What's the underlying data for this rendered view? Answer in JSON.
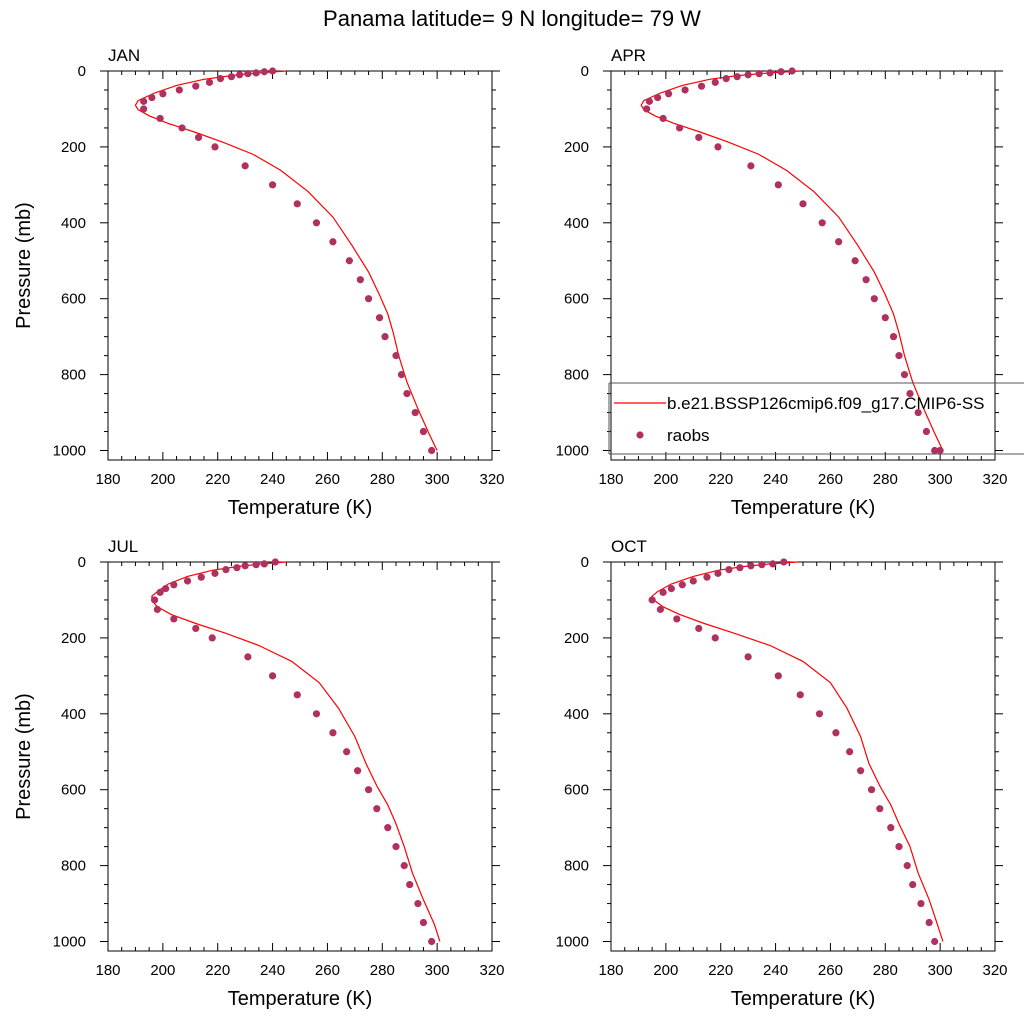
{
  "figure_title": "Panama  latitude= 9 N longitude= 79 W",
  "colors": {
    "model_line": "#ff0000",
    "raobs_marker": "#b03060",
    "axis": "#000000"
  },
  "legend": {
    "model_label": "b.e21.BSSP126cmip6.f09_g17.CMIP6-SS",
    "obs_label": "raobs"
  },
  "chart_data": [
    {
      "type": "line",
      "title": "JAN",
      "xlabel": "Temperature (K)",
      "ylabel": "Pressure (mb)",
      "xlim": [
        180,
        320
      ],
      "ylim": [
        0,
        1025
      ],
      "y_reversed": true,
      "xticks": [
        "180",
        "200",
        "220",
        "240",
        "260",
        "280",
        "300",
        "320"
      ],
      "yticks": [
        "0",
        "200",
        "400",
        "600",
        "800",
        "1000"
      ],
      "series": [
        {
          "name": "b.e21.BSSP126cmip6.f09_g17.CMIP6-SS",
          "kind": "line",
          "x": [
            245,
            235,
            225,
            215,
            205,
            197,
            191,
            190,
            191,
            195,
            202,
            212,
            222,
            233,
            243,
            253,
            262,
            269,
            275,
            279,
            282,
            284,
            286,
            289,
            293,
            297,
            300
          ],
          "y": [
            0,
            5,
            12,
            22,
            38,
            58,
            78,
            90,
            102,
            118,
            138,
            162,
            188,
            220,
            262,
            318,
            385,
            460,
            530,
            590,
            640,
            690,
            750,
            820,
            890,
            955,
            1000
          ]
        },
        {
          "name": "raobs",
          "kind": "scatter",
          "x": [
            240,
            237,
            234,
            231,
            228,
            225,
            221,
            217,
            212,
            206,
            200,
            196,
            193,
            193,
            199,
            207,
            213,
            219,
            230,
            240,
            249,
            256,
            262,
            268,
            272,
            275,
            279,
            281,
            285,
            287,
            289,
            292,
            295,
            298
          ],
          "y": [
            0,
            2,
            5,
            7,
            10,
            15,
            20,
            30,
            40,
            50,
            60,
            70,
            80,
            100,
            125,
            150,
            175,
            200,
            250,
            300,
            350,
            400,
            450,
            500,
            550,
            600,
            650,
            700,
            750,
            800,
            850,
            900,
            950,
            1000
          ]
        }
      ]
    },
    {
      "type": "line",
      "title": "APR",
      "xlabel": "Temperature (K)",
      "ylabel": "",
      "xlim": [
        180,
        320
      ],
      "ylim": [
        0,
        1025
      ],
      "y_reversed": true,
      "xticks": [
        "180",
        "200",
        "220",
        "240",
        "260",
        "280",
        "300",
        "320"
      ],
      "yticks": [
        "0",
        "200",
        "400",
        "600",
        "800",
        "1000"
      ],
      "series": [
        {
          "name": "b.e21.BSSP126cmip6.f09_g17.CMIP6-SS",
          "kind": "line",
          "x": [
            249,
            238,
            226,
            216,
            206,
            198,
            192,
            191,
            192,
            196,
            203,
            213,
            223,
            234,
            244,
            254,
            263,
            270,
            276,
            280,
            283,
            285,
            287,
            290,
            294,
            298,
            301
          ],
          "y": [
            0,
            5,
            12,
            22,
            38,
            58,
            78,
            90,
            102,
            118,
            138,
            162,
            188,
            220,
            262,
            318,
            385,
            460,
            530,
            590,
            640,
            690,
            750,
            820,
            890,
            955,
            1000
          ]
        },
        {
          "name": "raobs",
          "kind": "scatter",
          "x": [
            246,
            242,
            238,
            234,
            230,
            226,
            222,
            218,
            213,
            207,
            201,
            197,
            194,
            193,
            199,
            205,
            212,
            219,
            231,
            241,
            250,
            257,
            263,
            269,
            273,
            276,
            280,
            283,
            285,
            287,
            289,
            292,
            295,
            298,
            300
          ],
          "y": [
            0,
            2,
            5,
            7,
            10,
            15,
            20,
            30,
            40,
            50,
            60,
            70,
            80,
            100,
            125,
            150,
            175,
            200,
            250,
            300,
            350,
            400,
            450,
            500,
            550,
            600,
            650,
            700,
            750,
            800,
            850,
            900,
            950,
            1000,
            1000
          ]
        }
      ]
    },
    {
      "type": "line",
      "title": "JUL",
      "xlabel": "Temperature (K)",
      "ylabel": "Pressure (mb)",
      "xlim": [
        180,
        320
      ],
      "ylim": [
        0,
        1025
      ],
      "y_reversed": true,
      "xticks": [
        "180",
        "200",
        "220",
        "240",
        "260",
        "280",
        "300",
        "320"
      ],
      "yticks": [
        "0",
        "200",
        "400",
        "600",
        "800",
        "1000"
      ],
      "series": [
        {
          "name": "b.e21.BSSP126cmip6.f09_g17.CMIP6-SS",
          "kind": "line",
          "x": [
            245,
            236,
            227,
            218,
            209,
            202,
            198,
            196,
            196,
            198,
            203,
            212,
            223,
            235,
            247,
            257,
            264,
            270,
            274,
            278,
            282,
            285,
            288,
            291,
            295,
            299,
            301
          ],
          "y": [
            0,
            5,
            12,
            22,
            38,
            58,
            78,
            90,
            102,
            118,
            138,
            162,
            188,
            220,
            262,
            318,
            385,
            460,
            530,
            590,
            640,
            690,
            750,
            820,
            890,
            955,
            1000
          ]
        },
        {
          "name": "raobs",
          "kind": "scatter",
          "x": [
            241,
            237,
            234,
            230,
            227,
            223,
            219,
            214,
            209,
            204,
            201,
            199,
            197,
            198,
            204,
            212,
            218,
            231,
            240,
            249,
            256,
            262,
            267,
            271,
            275,
            278,
            282,
            285,
            288,
            290,
            293,
            295,
            298
          ],
          "y": [
            0,
            5,
            7,
            10,
            15,
            20,
            30,
            40,
            50,
            60,
            70,
            80,
            100,
            125,
            150,
            175,
            200,
            250,
            300,
            350,
            400,
            450,
            500,
            550,
            600,
            650,
            700,
            750,
            800,
            850,
            900,
            950,
            1000
          ]
        }
      ]
    },
    {
      "type": "line",
      "title": "OCT",
      "xlabel": "Temperature (K)",
      "ylabel": "",
      "xlim": [
        180,
        320
      ],
      "ylim": [
        0,
        1025
      ],
      "y_reversed": true,
      "xticks": [
        "180",
        "200",
        "220",
        "240",
        "260",
        "280",
        "300",
        "320"
      ],
      "yticks": [
        "0",
        "200",
        "400",
        "600",
        "800",
        "1000"
      ],
      "series": [
        {
          "name": "b.e21.BSSP126cmip6.f09_g17.CMIP6-SS",
          "kind": "line",
          "x": [
            248,
            238,
            228,
            219,
            210,
            202,
            197,
            195,
            196,
            199,
            205,
            214,
            225,
            238,
            250,
            260,
            266,
            271,
            274,
            278,
            282,
            285,
            289,
            292,
            296,
            299,
            301
          ],
          "y": [
            0,
            5,
            12,
            22,
            38,
            58,
            78,
            90,
            102,
            118,
            138,
            162,
            188,
            220,
            262,
            318,
            385,
            460,
            530,
            590,
            640,
            690,
            750,
            820,
            890,
            955,
            1000
          ]
        },
        {
          "name": "raobs",
          "kind": "scatter",
          "x": [
            243,
            239,
            235,
            231,
            227,
            223,
            219,
            215,
            210,
            206,
            202,
            199,
            195,
            198,
            204,
            212,
            218,
            230,
            241,
            249,
            256,
            262,
            267,
            271,
            275,
            278,
            282,
            285,
            288,
            290,
            293,
            296,
            298
          ],
          "y": [
            0,
            5,
            7,
            10,
            15,
            20,
            30,
            40,
            50,
            60,
            70,
            80,
            100,
            125,
            150,
            175,
            200,
            250,
            300,
            350,
            400,
            450,
            500,
            550,
            600,
            650,
            700,
            750,
            800,
            850,
            900,
            950,
            1000
          ]
        }
      ]
    }
  ]
}
